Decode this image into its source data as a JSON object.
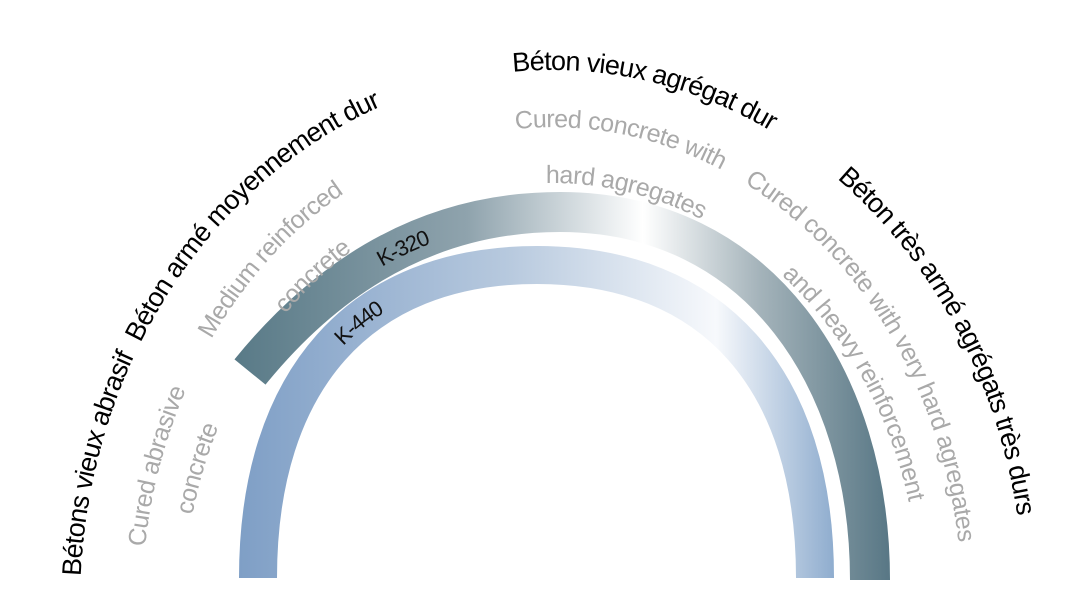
{
  "labels_fr": [
    "Bétons vieux abrasif",
    "Béton armé moyennement dur",
    "Béton vieux agrégat dur",
    "Béton très armé agrégats très durs"
  ],
  "labels_en": [
    {
      "lines": [
        "Cured abrasive",
        "concrete"
      ]
    },
    {
      "lines": [
        "Medium reinforced",
        "concrete"
      ]
    },
    {
      "lines": [
        "Cured concrete with",
        "hard agregates"
      ]
    },
    {
      "lines": [
        "Cured concrete with very hard agregates",
        "and heavy reinforcement"
      ]
    }
  ],
  "bands": [
    {
      "label": "K-320"
    },
    {
      "label": "K-440"
    }
  ]
}
